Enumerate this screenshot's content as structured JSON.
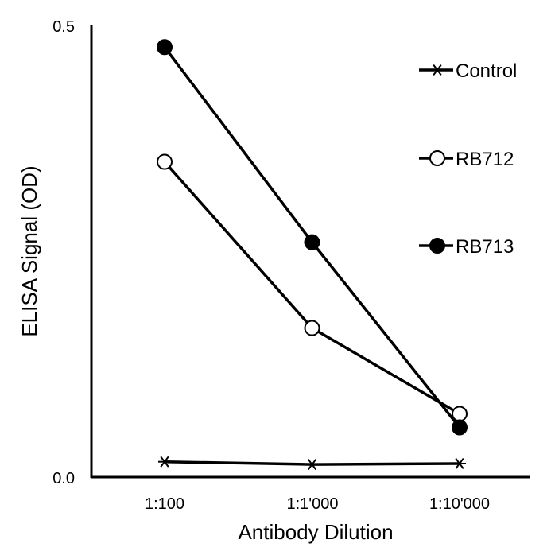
{
  "chart_data": {
    "type": "line",
    "title": "",
    "xlabel": "Antibody Dilution",
    "ylabel": "ELISA Signal (OD)",
    "categories": [
      "1:100",
      "1:1'000",
      "1:10'000"
    ],
    "ylim": [
      0,
      0.5
    ],
    "yticks": [
      "0.0",
      "0.5"
    ],
    "grid": false,
    "legend_position": "top-right",
    "series": [
      {
        "name": "Control",
        "marker": "asterisk",
        "values": [
          0.017,
          0.014,
          0.015
        ]
      },
      {
        "name": "RB712",
        "marker": "open-circle",
        "values": [
          0.349,
          0.165,
          0.07
        ]
      },
      {
        "name": "RB713",
        "marker": "filled-circle",
        "values": [
          0.476,
          0.26,
          0.055
        ]
      }
    ],
    "colors": {
      "line": "#000000",
      "open_fill": "#ffffff"
    }
  }
}
